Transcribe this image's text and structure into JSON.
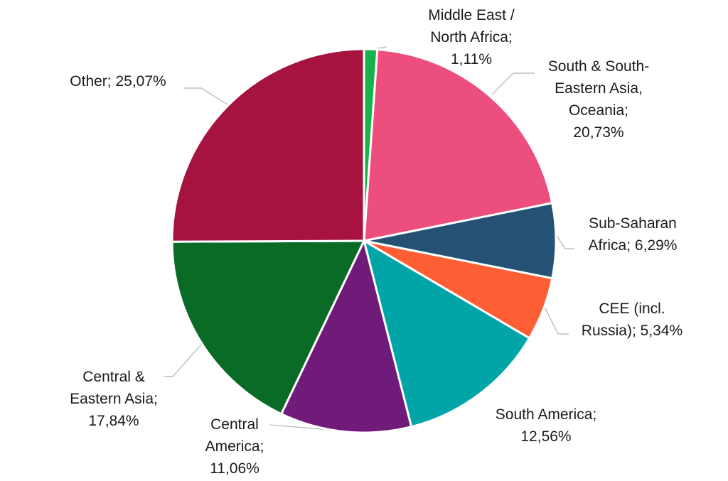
{
  "chart_data": {
    "type": "pie",
    "title": "",
    "start_angle_deg": 0,
    "direction": "clockwise",
    "slices": [
      {
        "name": "Middle East / North Africa",
        "value": 1.11,
        "label_lines": [
          "Middle East /",
          "North Africa;",
          "1,11%"
        ],
        "color": "#16b24b"
      },
      {
        "name": "South & South-Eastern Asia, Oceania",
        "value": 20.73,
        "label_lines": [
          "South & South-",
          "Eastern Asia,",
          "Oceania;",
          "20,73%"
        ],
        "color": "#ec4f7e"
      },
      {
        "name": "Sub-Saharan Africa",
        "value": 6.29,
        "label_lines": [
          "Sub-Saharan",
          "Africa; 6,29%"
        ],
        "color": "#255274"
      },
      {
        "name": "CEE (incl. Russia)",
        "value": 5.34,
        "label_lines": [
          "CEE (incl.",
          "Russia); 5,34%"
        ],
        "color": "#fe5e34"
      },
      {
        "name": "South America",
        "value": 12.56,
        "label_lines": [
          "South America;",
          "12,56%"
        ],
        "color": "#01a5a8"
      },
      {
        "name": "Central America",
        "value": 11.06,
        "label_lines": [
          "Central",
          "America;",
          "11,06%"
        ],
        "color": "#701b79"
      },
      {
        "name": "Central & Eastern Asia",
        "value": 17.84,
        "label_lines": [
          "Central &",
          "Eastern Asia;",
          "17,84%"
        ],
        "color": "#0a6b27"
      },
      {
        "name": "Other",
        "value": 25.07,
        "label_lines": [
          "Other; 25,07%"
        ],
        "color": "#a5133e"
      }
    ]
  }
}
